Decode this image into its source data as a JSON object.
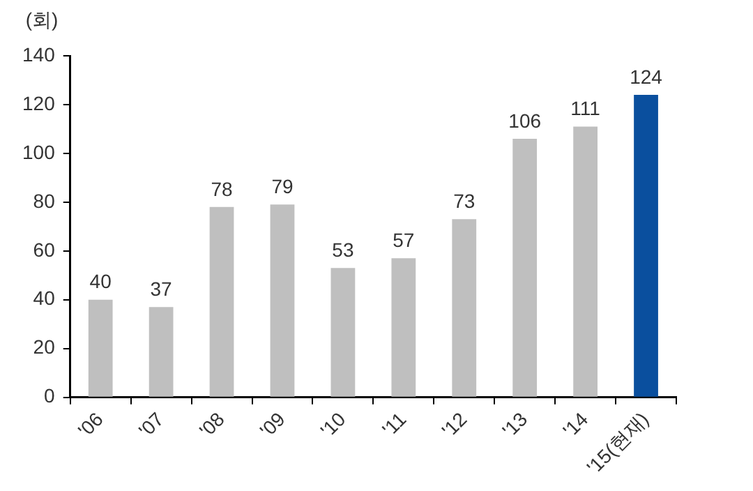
{
  "chart_data": {
    "type": "bar",
    "ylabel": "(회)",
    "categories": [
      "'06",
      "'07",
      "'08",
      "'09",
      "'10",
      "'11",
      "'12",
      "'13",
      "'14",
      "'15(현재)"
    ],
    "values": [
      40,
      37,
      78,
      79,
      53,
      57,
      73,
      106,
      111,
      124
    ],
    "colors": [
      "#bfbfbf",
      "#bfbfbf",
      "#bfbfbf",
      "#bfbfbf",
      "#bfbfbf",
      "#bfbfbf",
      "#bfbfbf",
      "#bfbfbf",
      "#bfbfbf",
      "#0a4f9e"
    ],
    "ylim": [
      0,
      140
    ],
    "yticks": [
      0,
      20,
      40,
      60,
      80,
      100,
      120,
      140
    ],
    "grid": false,
    "legend": false,
    "data_labels": true
  }
}
